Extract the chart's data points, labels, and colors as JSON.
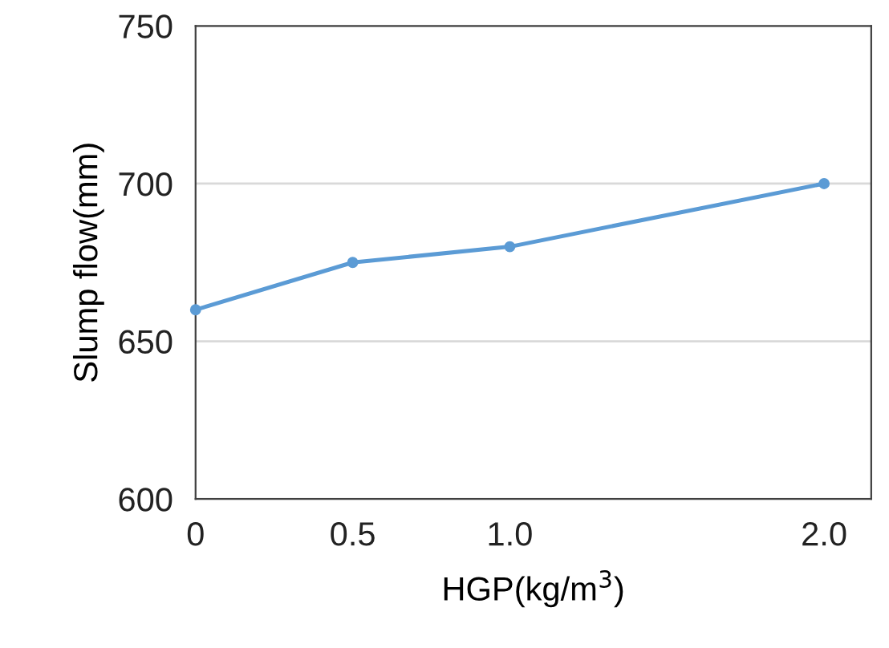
{
  "chart_data": {
    "type": "line",
    "xlabel": "HGP(kg/m$^{3}$)",
    "ylabel": "Slump flow(mm)",
    "x": [
      0,
      0.5,
      1.0,
      2.0
    ],
    "series": [
      {
        "color": "#5b9bd5",
        "values": [
          660,
          675,
          680,
          700
        ]
      }
    ],
    "xlim": [
      0,
      2.15
    ],
    "xticks": [
      0,
      0.5,
      {
        "value": 1.0,
        "label": "1.0"
      },
      {
        "value": 2.0,
        "label": "2.0"
      }
    ],
    "ylim": [
      600,
      750
    ],
    "yticks": [
      600,
      650,
      700,
      750
    ],
    "grid": "y",
    "marker": "circle",
    "line_style": "solid"
  }
}
